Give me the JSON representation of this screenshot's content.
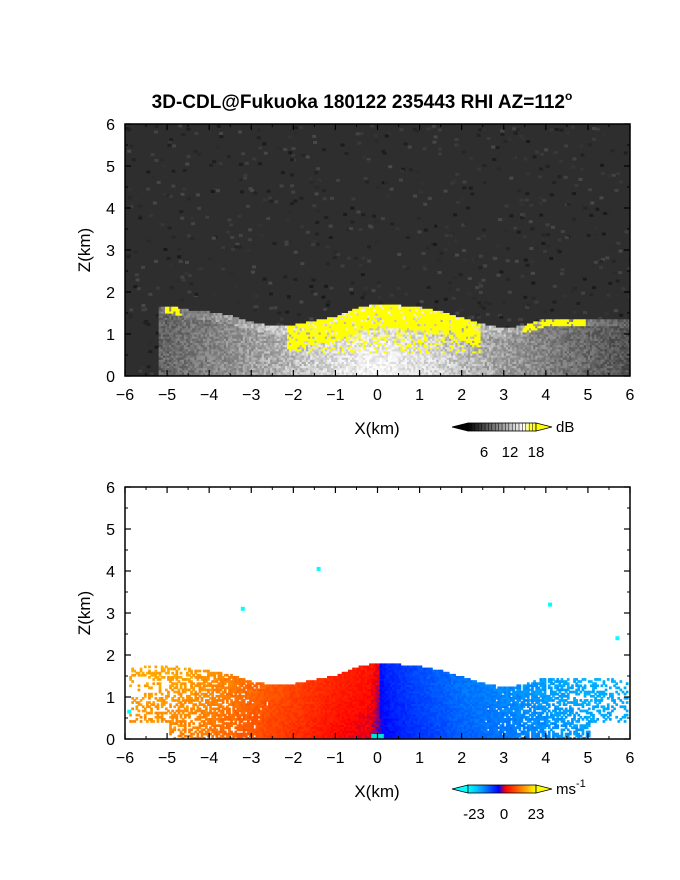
{
  "title": "3D-CDL@Fukuoka 180122 235443 RHI AZ=112",
  "title_superscript": "o",
  "chart_data": [
    {
      "type": "heatmap",
      "quantity": "backscatter",
      "xlabel": "X(km)",
      "ylabel": "Z(km)",
      "xlim": [
        -6,
        6
      ],
      "ylim": [
        0,
        6
      ],
      "x_ticks": [
        "-6",
        "-5",
        "-4",
        "-3",
        "-2",
        "-1",
        "0",
        "1",
        "2",
        "3",
        "4",
        "5",
        "6"
      ],
      "y_ticks": [
        "0",
        "1",
        "2",
        "3",
        "4",
        "5",
        "6"
      ],
      "colorbar": {
        "unit": "dB",
        "ticks": [
          "6",
          "12",
          "18"
        ],
        "range": [
          0,
          20
        ],
        "colors": [
          "#000000",
          "#ffffff",
          "#ffff00"
        ]
      },
      "grid": false,
      "echo_top_profile": {
        "x": [
          -5.0,
          -4.5,
          -4.0,
          -3.5,
          -3.0,
          -2.5,
          -2.0,
          -1.5,
          -1.0,
          -0.5,
          0.0,
          0.5,
          1.0,
          1.5,
          2.0,
          2.5,
          3.0,
          3.5,
          4.0,
          4.5,
          5.0,
          5.5,
          6.0
        ],
        "z_top": [
          1.65,
          1.55,
          1.5,
          1.4,
          1.25,
          1.15,
          1.2,
          1.3,
          1.4,
          1.6,
          1.7,
          1.65,
          1.6,
          1.5,
          1.35,
          1.2,
          1.1,
          1.2,
          1.35,
          1.35,
          1.35,
          1.35,
          1.3
        ]
      }
    },
    {
      "type": "heatmap",
      "quantity": "radial velocity",
      "xlabel": "X(km)",
      "ylabel": "Z(km)",
      "xlim": [
        -6,
        6
      ],
      "ylim": [
        0,
        6
      ],
      "x_ticks": [
        "-6",
        "-5",
        "-4",
        "-3",
        "-2",
        "-1",
        "0",
        "1",
        "2",
        "3",
        "4",
        "5",
        "6"
      ],
      "y_ticks": [
        "0",
        "1",
        "2",
        "3",
        "4",
        "5",
        "6"
      ],
      "colorbar": {
        "unit": "ms",
        "unit_exponent": "-1",
        "ticks": [
          "-23",
          "0",
          "23"
        ],
        "range": [
          -30,
          30
        ],
        "colors": [
          "#00ffff",
          "#0000ff",
          "#ff0000",
          "#ffff00"
        ]
      },
      "grid": false,
      "velocity_profile": {
        "x": [
          -5.0,
          -4.0,
          -3.0,
          -2.0,
          -1.0,
          -0.2,
          0.2,
          1.0,
          2.0,
          3.0,
          4.0,
          5.0
        ],
        "v_ms": [
          18,
          16,
          12,
          8,
          4,
          2,
          -4,
          -8,
          -12,
          -14,
          -16,
          -18
        ]
      },
      "isolated_points": [
        {
          "x": -1.4,
          "z": 4.05
        },
        {
          "x": -3.2,
          "z": 3.1
        },
        {
          "x": 4.1,
          "z": 3.2
        },
        {
          "x": 5.7,
          "z": 2.4
        },
        {
          "x": -5.9,
          "z": 0.65
        }
      ]
    }
  ]
}
